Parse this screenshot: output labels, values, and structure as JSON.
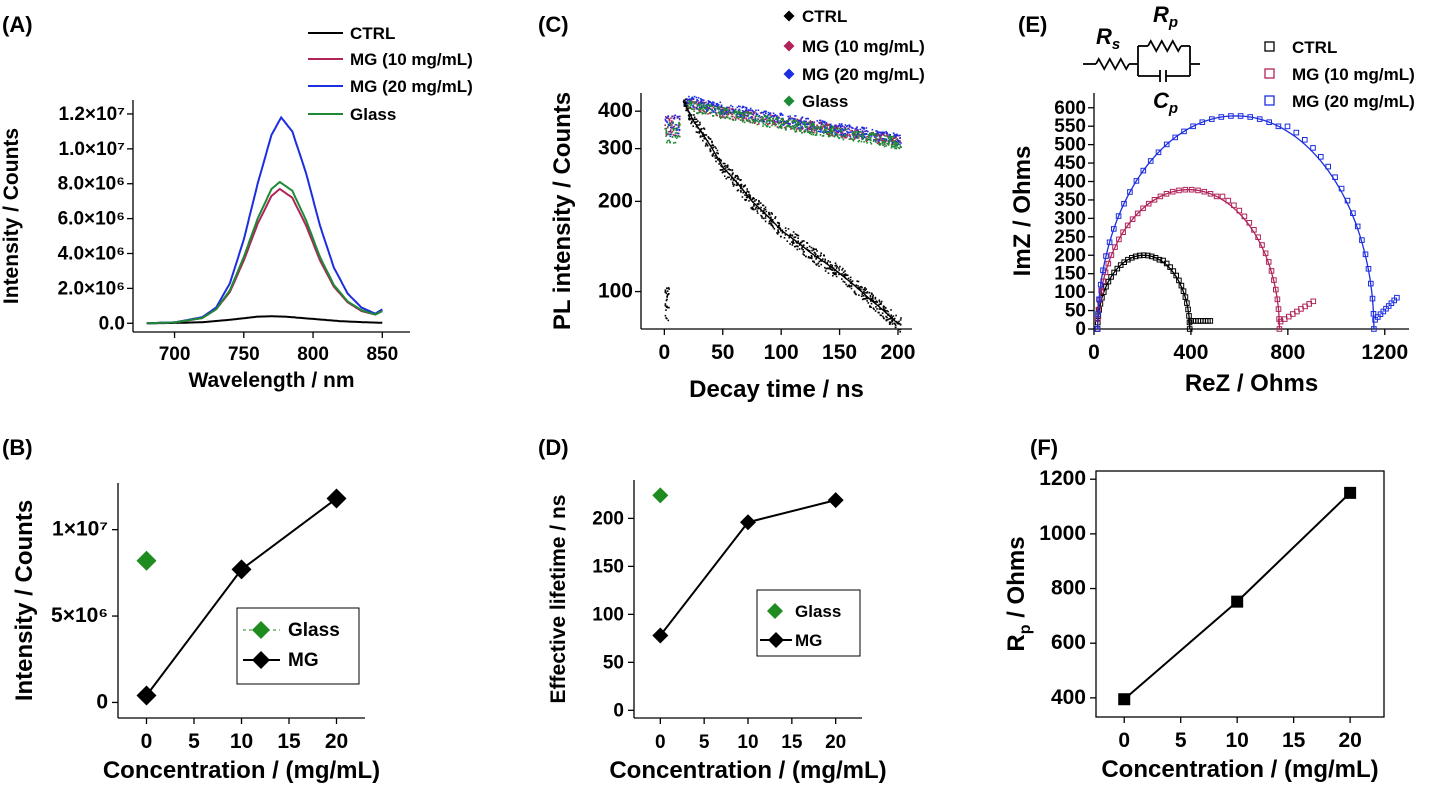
{
  "colors": {
    "ctrl": "#000000",
    "mg10": "#b0245a",
    "mg20": "#1c2ee0",
    "glass": "#1f8a36",
    "glassPt": "#1e8c1e"
  },
  "chart_data": [
    {
      "id": "A",
      "panel_label": "(A)",
      "type": "line",
      "xlabel": "Wavelength / nm",
      "ylabel": "Intensity / Counts",
      "xlim": [
        670,
        870
      ],
      "ylim": [
        -500000,
        12800000
      ],
      "xticks": [
        700,
        750,
        800,
        850
      ],
      "yticks": [
        "0.0",
        "2.0×10⁶",
        "4.0×10⁶",
        "6.0×10⁶",
        "8.0×10⁶",
        "1.0×10⁷",
        "1.2×10⁷"
      ],
      "legend_position": "top-right",
      "series": [
        {
          "name": "CTRL",
          "color_key": "ctrl",
          "x": [
            680,
            700,
            720,
            740,
            760,
            770,
            780,
            800,
            820,
            840,
            850
          ],
          "y": [
            0,
            20000,
            60000,
            200000,
            380000,
            400000,
            380000,
            250000,
            120000,
            50000,
            30000
          ]
        },
        {
          "name": "MG (10 mg/mL)",
          "color_key": "mg10",
          "x": [
            680,
            700,
            720,
            730,
            740,
            750,
            760,
            770,
            776,
            785,
            795,
            805,
            815,
            825,
            835,
            845,
            850
          ],
          "y": [
            0,
            50000,
            300000,
            800000,
            1800000,
            3600000,
            5700000,
            7300000,
            7700000,
            7200000,
            5600000,
            3600000,
            2100000,
            1200000,
            700000,
            500000,
            750000
          ]
        },
        {
          "name": "MG (20 mg/mL)",
          "color_key": "mg20",
          "x": [
            680,
            700,
            720,
            730,
            740,
            750,
            760,
            770,
            777,
            785,
            795,
            805,
            815,
            825,
            835,
            845,
            850
          ],
          "y": [
            0,
            50000,
            350000,
            900000,
            2300000,
            4800000,
            8000000,
            10800000,
            11800000,
            11000000,
            8600000,
            5600000,
            3200000,
            1700000,
            900000,
            550000,
            800000
          ]
        },
        {
          "name": "Glass",
          "color_key": "glass",
          "x": [
            680,
            700,
            720,
            730,
            740,
            750,
            760,
            770,
            776,
            785,
            795,
            805,
            815,
            825,
            835,
            845,
            850
          ],
          "y": [
            0,
            50000,
            300000,
            800000,
            1900000,
            3800000,
            6000000,
            7700000,
            8100000,
            7600000,
            5900000,
            3800000,
            2200000,
            1250000,
            750000,
            500000,
            700000
          ]
        }
      ]
    },
    {
      "id": "B",
      "panel_label": "(B)",
      "type": "line",
      "xlabel": "Concentration / (mg/mL)",
      "ylabel": "Intensity / Counts",
      "xlim": [
        -3,
        23
      ],
      "ylim": [
        -900000,
        12700000
      ],
      "xticks": [
        0,
        5,
        10,
        15,
        20
      ],
      "yticks": [
        "0",
        "5×10⁶",
        "1×10⁷"
      ],
      "legend_position": "center-right",
      "series": [
        {
          "name": "Glass",
          "color_key": "glassPt",
          "x": [
            0
          ],
          "y": [
            8200000
          ]
        },
        {
          "name": "MG",
          "color_key": "ctrl",
          "x": [
            0,
            10,
            20
          ],
          "y": [
            400000,
            7700000,
            11800000
          ]
        }
      ]
    },
    {
      "id": "C",
      "panel_label": "(C)",
      "type": "scatter",
      "yscale": "log",
      "xlabel": "Decay time / ns",
      "ylabel": "PL intensity / Counts",
      "xlim": [
        -20,
        212
      ],
      "ylim": [
        75,
        460
      ],
      "xticks": [
        0,
        50,
        100,
        150,
        200
      ],
      "yticks": [
        100,
        200,
        300,
        400
      ],
      "legend_position": "top-right",
      "series": [
        {
          "name": "CTRL",
          "color_key": "ctrl",
          "x": [
            15,
            25,
            50,
            75,
            100,
            125,
            150,
            175,
            200
          ],
          "y": [
            440,
            370,
            260,
            200,
            160,
            135,
            115,
            95,
            78
          ]
        },
        {
          "name": "MG (10 mg/mL)",
          "color_key": "mg10",
          "x": [
            15,
            50,
            100,
            150,
            200
          ],
          "y": [
            430,
            400,
            370,
            345,
            320
          ]
        },
        {
          "name": "MG (20 mg/mL)",
          "color_key": "mg20",
          "x": [
            15,
            50,
            100,
            150,
            200
          ],
          "y": [
            440,
            410,
            378,
            350,
            325
          ]
        },
        {
          "name": "Glass",
          "color_key": "glass",
          "x": [
            15,
            50,
            100,
            150,
            200
          ],
          "y": [
            425,
            395,
            365,
            340,
            315
          ]
        }
      ]
    },
    {
      "id": "D",
      "panel_label": "(D)",
      "type": "line",
      "xlabel": "Concentration / (mg/mL)",
      "ylabel": "Effective lifetime / ns",
      "xlim": [
        -3,
        23
      ],
      "ylim": [
        -8,
        240
      ],
      "xticks": [
        0,
        5,
        10,
        15,
        20
      ],
      "yticks": [
        0,
        50,
        100,
        150,
        200
      ],
      "legend_position": "center-right",
      "series": [
        {
          "name": "Glass",
          "color_key": "glassPt",
          "x": [
            0
          ],
          "y": [
            224
          ]
        },
        {
          "name": "MG",
          "color_key": "ctrl",
          "x": [
            0,
            10,
            20
          ],
          "y": [
            78,
            196,
            219
          ]
        }
      ]
    },
    {
      "id": "E",
      "panel_label": "(E)",
      "type": "scatter",
      "xlabel": "ReZ / Ohms",
      "ylabel": "ImZ / Ohms",
      "xlim": [
        0,
        1300
      ],
      "ylim": [
        0,
        640
      ],
      "xticks": [
        0,
        400,
        800,
        1200
      ],
      "yticks": [
        0,
        50,
        100,
        150,
        200,
        250,
        300,
        350,
        400,
        450,
        500,
        550,
        600
      ],
      "legend_position": "top-right",
      "circuit_labels": {
        "rs_main": "R",
        "rs_sub": "s",
        "rp_main": "R",
        "rp_sub": "p",
        "cp_main": "C",
        "cp_sub": "p"
      },
      "series": [
        {
          "name": "CTRL",
          "color_key": "ctrl",
          "arc": {
            "r0": 15,
            "r1": 395,
            "peak": 200
          },
          "tail_x": [
            400,
            480
          ],
          "tail_y": [
            22,
            22
          ]
        },
        {
          "name": "MG (10 mg/mL)",
          "color_key": "mg10",
          "arc": {
            "r0": 15,
            "r1": 765,
            "peak": 378
          },
          "tail_x": [
            770,
            905
          ],
          "tail_y": [
            20,
            75
          ]
        },
        {
          "name": "MG (20 mg/mL)",
          "color_key": "mg20",
          "arc": {
            "r0": 15,
            "r1": 1155,
            "peak": 578
          },
          "tail_x": [
            1160,
            1250
          ],
          "tail_y": [
            25,
            85
          ]
        }
      ]
    },
    {
      "id": "F",
      "panel_label": "(F)",
      "type": "line",
      "xlabel": "Concentration / (mg/mL)",
      "ylabel_main": "R",
      "ylabel_sub": "p",
      "ylabel_rest": " / Ohms",
      "xlim": [
        -2.5,
        23
      ],
      "ylim": [
        330,
        1230
      ],
      "xticks": [
        0,
        5,
        10,
        15,
        20
      ],
      "yticks": [
        400,
        600,
        800,
        1000,
        1200
      ],
      "series": [
        {
          "name": "",
          "color_key": "ctrl",
          "x": [
            0,
            10,
            20
          ],
          "y": [
            395,
            752,
            1150
          ]
        }
      ]
    }
  ]
}
